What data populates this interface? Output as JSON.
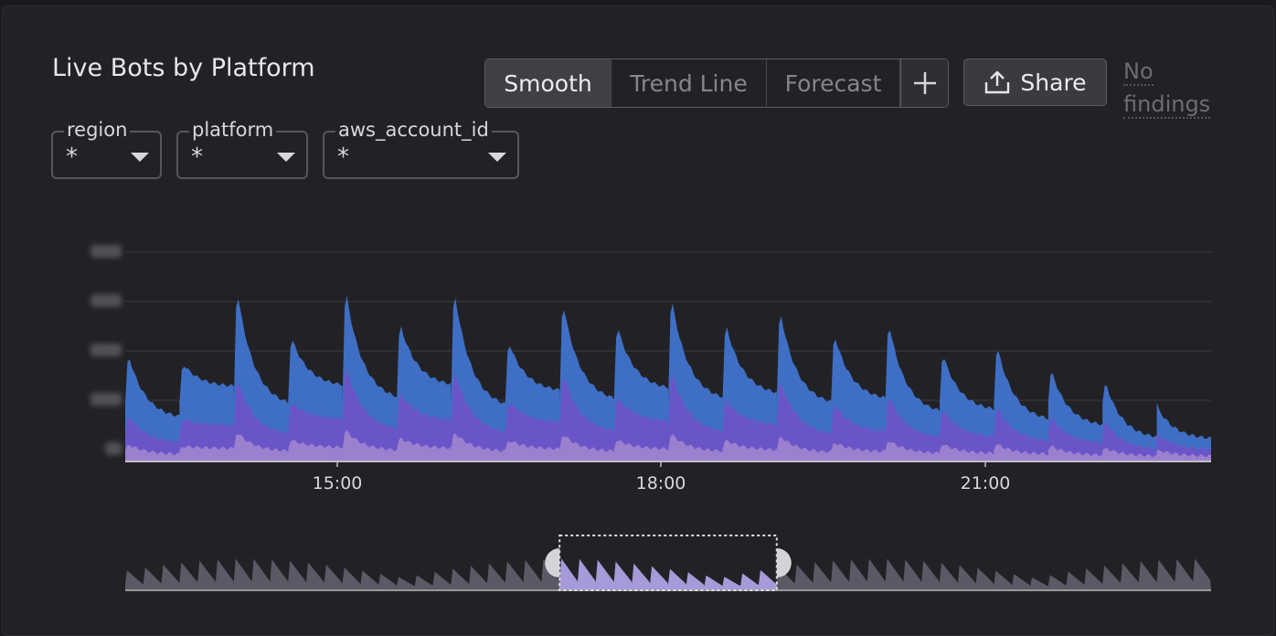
{
  "panel": {
    "title": "Live Bots by Platform"
  },
  "toolbar": {
    "options": [
      {
        "label": "Smooth",
        "active": true
      },
      {
        "label": "Trend Line",
        "active": false
      },
      {
        "label": "Forecast",
        "active": false
      }
    ],
    "add_icon": "plus-icon",
    "share_label": "Share",
    "share_icon": "upload-icon",
    "findings_label": "No findings"
  },
  "filters": [
    {
      "name": "region",
      "value": "*"
    },
    {
      "name": "platform",
      "value": "*"
    },
    {
      "name": "aws_account_id",
      "value": "*"
    }
  ],
  "colors": {
    "series_top": "#3f6fc5",
    "series_mid": "#6a55c8",
    "series_bottom": "#9b80cf",
    "overview": "#5a5a66",
    "overview_selected": "#a79ad8"
  },
  "chart_data": {
    "type": "area",
    "stacked": true,
    "x_ticks": [
      "15:00",
      "18:00",
      "21:00"
    ],
    "y_tick_count": 5,
    "y_tick_labels_blurred": true,
    "grid": true,
    "cycles": 20,
    "peaks_top": [
      0.52,
      0.47,
      0.84,
      0.6,
      0.84,
      0.67,
      0.84,
      0.58,
      0.78,
      0.66,
      0.8,
      0.67,
      0.74,
      0.62,
      0.68,
      0.52,
      0.56,
      0.44,
      0.38,
      0.24
    ],
    "peaks_mid": [
      0.22,
      0.2,
      0.4,
      0.28,
      0.47,
      0.33,
      0.45,
      0.29,
      0.43,
      0.31,
      0.44,
      0.3,
      0.4,
      0.28,
      0.32,
      0.25,
      0.26,
      0.21,
      0.19,
      0.12
    ],
    "peaks_bottom": [
      0.08,
      0.07,
      0.14,
      0.1,
      0.15,
      0.11,
      0.14,
      0.1,
      0.13,
      0.1,
      0.13,
      0.1,
      0.12,
      0.09,
      0.1,
      0.08,
      0.08,
      0.07,
      0.06,
      0.05
    ],
    "overview_selection": {
      "from_fraction": 0.4,
      "to_fraction": 0.6
    }
  }
}
